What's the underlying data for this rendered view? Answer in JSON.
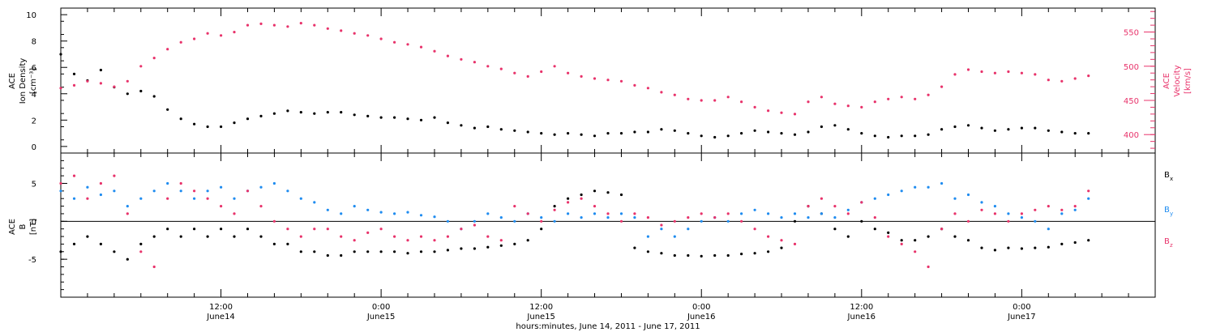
{
  "x_axis": {
    "label": "hours:minutes, June 14, 2011 - June 17, 2011",
    "ticks": [
      {
        "hours": 12,
        "time": "12:00",
        "date": "June14"
      },
      {
        "hours": 24,
        "time": "0:00",
        "date": "June15"
      },
      {
        "hours": 36,
        "time": "12:00",
        "date": "June15"
      },
      {
        "hours": 48,
        "time": "0:00",
        "date": "June16"
      },
      {
        "hours": 60,
        "time": "12:00",
        "date": "June16"
      },
      {
        "hours": 72,
        "time": "0:00",
        "date": "June17"
      }
    ],
    "range_hours": [
      0,
      82
    ]
  },
  "colors": {
    "black": "#000000",
    "pink": "#e8336b",
    "blue": "#1f8cf0"
  },
  "chart_data": [
    {
      "type": "scatter",
      "panel": "top",
      "left_axis": {
        "label_lines": [
          "ACE",
          "Ion Density",
          "[cm⁻³]"
        ],
        "ylim": [
          -0.5,
          10.5
        ],
        "ticks": [
          "0",
          "2",
          "4",
          "6",
          "8",
          "10"
        ]
      },
      "right_axis": {
        "label_lines": [
          "ACE",
          "Velocity",
          "[km/s]"
        ],
        "ylim": [
          373,
          585
        ],
        "ticks": [
          "400",
          "450",
          "500",
          "550"
        ]
      },
      "series": [
        {
          "axis": "left",
          "color": "black",
          "x": [
            0,
            1,
            2,
            3,
            4,
            5,
            6,
            7,
            8,
            9,
            10,
            11,
            12,
            13,
            14,
            15,
            16,
            17,
            18,
            19,
            20,
            21,
            22,
            23,
            24,
            25,
            26,
            27,
            28,
            29,
            30,
            31,
            32,
            33,
            34,
            35,
            36,
            37,
            38,
            39,
            40,
            41,
            42,
            43,
            44,
            45,
            46,
            47,
            48,
            49,
            50,
            51,
            52,
            53,
            54,
            55,
            56,
            57,
            58,
            59,
            60,
            61,
            62,
            63,
            64,
            65,
            66,
            67,
            68,
            69,
            70,
            71,
            72,
            73,
            74,
            75,
            76,
            77
          ],
          "y": [
            7,
            5.5,
            5,
            5.8,
            4.5,
            4,
            4.2,
            3.8,
            2.8,
            2.1,
            1.7,
            1.5,
            1.5,
            1.8,
            2.1,
            2.3,
            2.5,
            2.7,
            2.6,
            2.5,
            2.6,
            2.6,
            2.4,
            2.3,
            2.2,
            2.2,
            2.1,
            2.0,
            2.2,
            1.8,
            1.6,
            1.4,
            1.5,
            1.3,
            1.2,
            1.1,
            1.0,
            0.9,
            1.0,
            0.9,
            0.8,
            1.0,
            1.0,
            1.1,
            1.1,
            1.3,
            1.2,
            1.0,
            0.8,
            0.7,
            0.8,
            1.0,
            1.2,
            1.1,
            1.0,
            0.9,
            1.1,
            1.5,
            1.6,
            1.3,
            1.0,
            0.8,
            0.7,
            0.8,
            0.8,
            0.9,
            1.3,
            1.5,
            1.6,
            1.4,
            1.2,
            1.3,
            1.4,
            1.4,
            1.2,
            1.1,
            1.0,
            1.0
          ]
        },
        {
          "axis": "right",
          "color": "pink",
          "x": [
            0,
            1,
            2,
            3,
            4,
            5,
            6,
            7,
            8,
            9,
            10,
            11,
            12,
            13,
            14,
            15,
            16,
            17,
            18,
            19,
            20,
            21,
            22,
            23,
            24,
            25,
            26,
            27,
            28,
            29,
            30,
            31,
            32,
            33,
            34,
            35,
            36,
            37,
            38,
            39,
            40,
            41,
            42,
            43,
            44,
            45,
            46,
            47,
            48,
            49,
            50,
            51,
            52,
            53,
            54,
            55,
            56,
            57,
            58,
            59,
            60,
            61,
            62,
            63,
            64,
            65,
            66,
            67,
            68,
            69,
            70,
            71,
            72,
            73,
            74,
            75,
            76,
            77
          ],
          "y": [
            468,
            472,
            478,
            475,
            470,
            478,
            500,
            512,
            525,
            535,
            540,
            548,
            545,
            550,
            560,
            562,
            560,
            558,
            563,
            560,
            555,
            552,
            548,
            545,
            540,
            535,
            532,
            528,
            522,
            515,
            510,
            506,
            500,
            496,
            490,
            485,
            492,
            500,
            490,
            485,
            482,
            480,
            478,
            472,
            468,
            462,
            458,
            452,
            450,
            450,
            455,
            448,
            440,
            435,
            432,
            430,
            448,
            455,
            445,
            442,
            440,
            448,
            452,
            455,
            452,
            458,
            470,
            488,
            495,
            492,
            490,
            492,
            490,
            488,
            480,
            478,
            482,
            486
          ]
        }
      ]
    },
    {
      "type": "scatter",
      "panel": "bottom",
      "left_axis": {
        "label_lines": [
          "ACE",
          "B",
          "[nT]"
        ],
        "ylim": [
          -10,
          9
        ],
        "ticks": [
          "-5",
          "0",
          "5"
        ]
      },
      "legend": {
        "placement": "right",
        "entries": [
          {
            "label": "B",
            "sub": "x",
            "color": "black"
          },
          {
            "label": "B",
            "sub": "y",
            "color": "blue"
          },
          {
            "label": "B",
            "sub": "z",
            "color": "pink"
          }
        ]
      },
      "series": [
        {
          "name": "Bx",
          "color": "black",
          "x": [
            0,
            1,
            2,
            3,
            4,
            5,
            6,
            7,
            8,
            9,
            10,
            11,
            12,
            13,
            14,
            15,
            16,
            17,
            18,
            19,
            20,
            21,
            22,
            23,
            24,
            25,
            26,
            27,
            28,
            29,
            30,
            31,
            32,
            33,
            34,
            35,
            36,
            37,
            38,
            39,
            40,
            41,
            42,
            43,
            44,
            45,
            46,
            47,
            48,
            49,
            50,
            51,
            52,
            53,
            54,
            55,
            56,
            57,
            58,
            59,
            60,
            61,
            62,
            63,
            64,
            65,
            66,
            67,
            68,
            69,
            70,
            71,
            72,
            73,
            74,
            75,
            76,
            77
          ],
          "y": [
            -4,
            -3,
            -2,
            -3,
            -4,
            -5,
            -3,
            -2,
            -1,
            -2,
            -1,
            -2,
            -1,
            -2,
            -1,
            -2,
            -3,
            -3,
            -4,
            -4,
            -4.5,
            -4.5,
            -4,
            -4,
            -4,
            -4,
            -4.2,
            -4,
            -4,
            -3.8,
            -3.6,
            -3.6,
            -3.4,
            -3.2,
            -3.0,
            -2.5,
            -1,
            2,
            3,
            3.5,
            4,
            3.8,
            3.5,
            -3.5,
            -4,
            -4.2,
            -4.5,
            -4.5,
            -4.6,
            -4.5,
            -4.5,
            -4.3,
            -4.2,
            -4,
            -3.5,
            0,
            2,
            1,
            -1,
            -2,
            0,
            -1,
            -1.5,
            -2.5,
            -2.5,
            -2,
            -1,
            -2,
            -2.5,
            -3.5,
            -3.8,
            -3.5,
            -3.6,
            -3.5,
            -3.4,
            -3,
            -2.8,
            -2.5
          ]
        },
        {
          "name": "By",
          "color": "blue",
          "x": [
            0,
            1,
            2,
            3,
            4,
            5,
            6,
            7,
            8,
            9,
            10,
            11,
            12,
            13,
            14,
            15,
            16,
            17,
            18,
            19,
            20,
            21,
            22,
            23,
            24,
            25,
            26,
            27,
            28,
            29,
            30,
            31,
            32,
            33,
            34,
            35,
            36,
            37,
            38,
            39,
            40,
            41,
            42,
            43,
            44,
            45,
            46,
            47,
            48,
            49,
            50,
            51,
            52,
            53,
            54,
            55,
            56,
            57,
            58,
            59,
            60,
            61,
            62,
            63,
            64,
            65,
            66,
            67,
            68,
            69,
            70,
            71,
            72,
            73,
            74,
            75,
            76,
            77
          ],
          "y": [
            4,
            3,
            4.5,
            3.5,
            4,
            2,
            3,
            4,
            5,
            4,
            3,
            4,
            4.5,
            3,
            4,
            4.5,
            5,
            4,
            3,
            2.5,
            1.5,
            1,
            2,
            1.5,
            1.2,
            1,
            1.2,
            0.8,
            0.6,
            0,
            -1,
            0,
            1,
            0.5,
            0,
            1,
            0.5,
            0,
            1,
            0.5,
            1,
            0.5,
            1,
            0.5,
            -2,
            -1,
            -2,
            -1,
            0,
            0.5,
            0,
            1,
            1.5,
            1,
            0.5,
            1,
            0.5,
            1,
            0.5,
            1.5,
            2.5,
            3,
            3.5,
            4,
            4.5,
            4.5,
            5,
            3,
            3.5,
            2.5,
            2,
            1,
            0.5,
            0,
            -1,
            1,
            1.5,
            3
          ]
        },
        {
          "name": "Bz",
          "color": "pink",
          "x": [
            0,
            1,
            2,
            3,
            4,
            5,
            6,
            7,
            8,
            9,
            10,
            11,
            12,
            13,
            14,
            15,
            16,
            17,
            18,
            19,
            20,
            21,
            22,
            23,
            24,
            25,
            26,
            27,
            28,
            29,
            30,
            31,
            32,
            33,
            34,
            35,
            36,
            37,
            38,
            39,
            40,
            41,
            42,
            43,
            44,
            45,
            46,
            47,
            48,
            49,
            50,
            51,
            52,
            53,
            54,
            55,
            56,
            57,
            58,
            59,
            60,
            61,
            62,
            63,
            64,
            65,
            66,
            67,
            68,
            69,
            70,
            71,
            72,
            73,
            74,
            75,
            76,
            77
          ],
          "y": [
            5,
            6,
            3,
            5,
            6,
            1,
            -4,
            -6,
            3,
            5,
            4,
            3,
            2,
            1,
            4,
            2,
            0,
            -1,
            -2,
            -1,
            -1,
            -2,
            -2.5,
            -1.5,
            -1,
            -2,
            -2.5,
            -2,
            -2.5,
            -2,
            -1,
            -0.5,
            -2,
            -2.5,
            2,
            1,
            0,
            1.5,
            2.5,
            3,
            2,
            1,
            0,
            1,
            0.5,
            -0.5,
            0,
            0.5,
            1,
            0.5,
            1,
            0,
            -1,
            -2,
            -2.5,
            -3,
            2,
            3,
            2,
            1,
            2.5,
            0.5,
            -2,
            -3,
            -4,
            -6,
            -1,
            1,
            0,
            1.5,
            1,
            0,
            1,
            1.5,
            2,
            1.5,
            2,
            4
          ]
        }
      ]
    }
  ]
}
